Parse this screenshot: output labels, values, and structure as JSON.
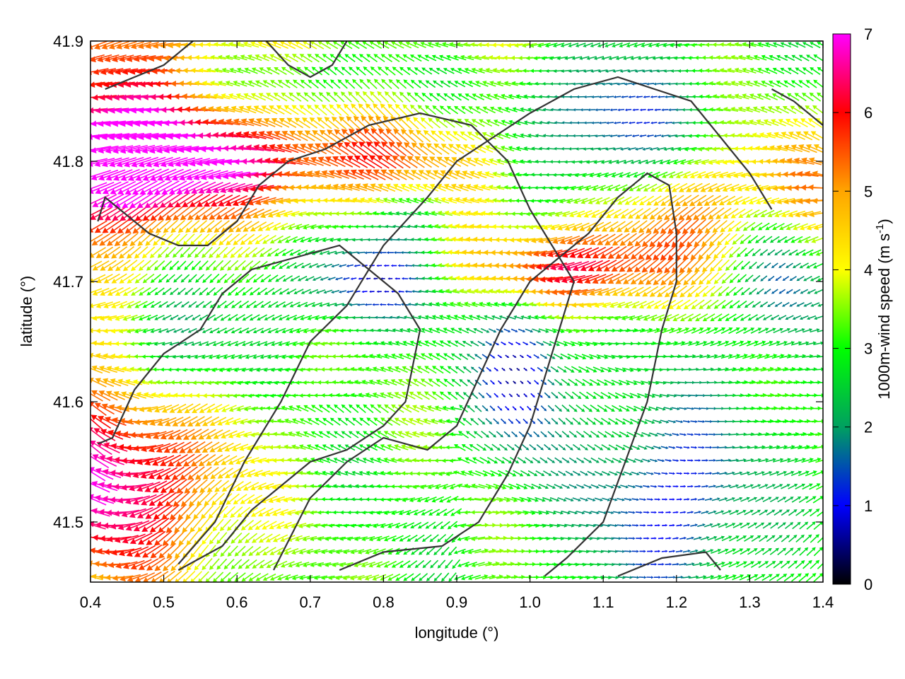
{
  "chart_data": {
    "type": "vector-field",
    "xlabel": "longitude (°)",
    "ylabel": "latitude (°)",
    "xlim": [
      0.4,
      1.4
    ],
    "ylim": [
      41.45,
      41.9
    ],
    "x_ticks": [
      "0.4",
      "0.5",
      "0.6",
      "0.7",
      "0.8",
      "0.9",
      "1.0",
      "1.1",
      "1.2",
      "1.3",
      "1.4"
    ],
    "y_ticks": [
      "41.5",
      "41.6",
      "41.7",
      "41.8",
      "41.9"
    ],
    "colorbar": {
      "label": "1000m-wind speed (m s",
      "label_sup": "-1",
      "label_close": ")",
      "min": 0,
      "max": 7,
      "ticks": [
        "0",
        "1",
        "2",
        "3",
        "4",
        "5",
        "6",
        "7"
      ],
      "colormap": [
        "#000000",
        "#0000ff",
        "#00a060",
        "#00ff00",
        "#ffff00",
        "#ffa500",
        "#ff0000",
        "#ff00ff"
      ]
    },
    "grid": false,
    "arrow_grid_step_deg": 0.01,
    "vector_description": "wind vectors sampled on a regular lon/lat grid; colour = speed",
    "contours": [
      [
        [
          0.41,
          41.565
        ],
        [
          0.43,
          41.57
        ],
        [
          0.46,
          41.61
        ],
        [
          0.5,
          41.64
        ],
        [
          0.55,
          41.66
        ],
        [
          0.58,
          41.69
        ],
        [
          0.62,
          41.71
        ],
        [
          0.68,
          41.72
        ],
        [
          0.74,
          41.73
        ],
        [
          0.78,
          41.71
        ],
        [
          0.82,
          41.69
        ],
        [
          0.85,
          41.66
        ],
        [
          0.83,
          41.6
        ],
        [
          0.8,
          41.58
        ],
        [
          0.75,
          41.56
        ],
        [
          0.7,
          41.55
        ],
        [
          0.66,
          41.53
        ],
        [
          0.62,
          41.51
        ],
        [
          0.58,
          41.48
        ],
        [
          0.52,
          41.46
        ]
      ],
      [
        [
          0.41,
          41.75
        ],
        [
          0.42,
          41.77
        ],
        [
          0.44,
          41.76
        ],
        [
          0.48,
          41.74
        ],
        [
          0.52,
          41.73
        ],
        [
          0.56,
          41.73
        ],
        [
          0.6,
          41.75
        ],
        [
          0.63,
          41.78
        ],
        [
          0.67,
          41.8
        ],
        [
          0.72,
          41.81
        ],
        [
          0.78,
          41.83
        ],
        [
          0.85,
          41.84
        ],
        [
          0.92,
          41.83
        ],
        [
          0.97,
          41.8
        ],
        [
          1.0,
          41.76
        ],
        [
          1.03,
          41.73
        ],
        [
          1.06,
          41.7
        ],
        [
          1.04,
          41.66
        ],
        [
          1.02,
          41.62
        ],
        [
          1.0,
          41.58
        ],
        [
          0.97,
          41.54
        ],
        [
          0.93,
          41.5
        ],
        [
          0.88,
          41.48
        ],
        [
          0.8,
          41.475
        ],
        [
          0.74,
          41.46
        ]
      ],
      [
        [
          0.65,
          41.46
        ],
        [
          0.7,
          41.52
        ],
        [
          0.75,
          41.55
        ],
        [
          0.8,
          41.57
        ],
        [
          0.86,
          41.56
        ],
        [
          0.9,
          41.58
        ],
        [
          0.93,
          41.62
        ],
        [
          0.96,
          41.66
        ],
        [
          1.0,
          41.7
        ],
        [
          1.04,
          41.72
        ],
        [
          1.08,
          41.74
        ],
        [
          1.12,
          41.77
        ],
        [
          1.16,
          41.79
        ],
        [
          1.19,
          41.78
        ],
        [
          1.2,
          41.74
        ],
        [
          1.2,
          41.7
        ],
        [
          1.18,
          41.66
        ],
        [
          1.16,
          41.6
        ],
        [
          1.13,
          41.55
        ],
        [
          1.1,
          41.5
        ],
        [
          1.05,
          41.47
        ],
        [
          1.02,
          41.455
        ]
      ],
      [
        [
          0.52,
          41.465
        ],
        [
          0.57,
          41.5
        ],
        [
          0.61,
          41.55
        ],
        [
          0.66,
          41.6
        ],
        [
          0.7,
          41.65
        ],
        [
          0.75,
          41.68
        ],
        [
          0.8,
          41.73
        ],
        [
          0.86,
          41.77
        ],
        [
          0.9,
          41.8
        ],
        [
          0.95,
          41.82
        ],
        [
          1.0,
          41.84
        ],
        [
          1.06,
          41.86
        ],
        [
          1.12,
          41.87
        ],
        [
          1.17,
          41.86
        ],
        [
          1.22,
          41.85
        ],
        [
          1.26,
          41.82
        ],
        [
          1.3,
          41.79
        ],
        [
          1.33,
          41.76
        ]
      ],
      [
        [
          1.12,
          41.455
        ],
        [
          1.18,
          41.47
        ],
        [
          1.24,
          41.475
        ],
        [
          1.26,
          41.46
        ]
      ],
      [
        [
          1.33,
          41.86
        ],
        [
          1.36,
          41.85
        ],
        [
          1.4,
          41.83
        ]
      ],
      [
        [
          0.42,
          41.86
        ],
        [
          0.46,
          41.87
        ],
        [
          0.5,
          41.88
        ],
        [
          0.54,
          41.9
        ]
      ],
      [
        [
          0.64,
          41.9
        ],
        [
          0.67,
          41.88
        ],
        [
          0.7,
          41.87
        ],
        [
          0.73,
          41.88
        ],
        [
          0.75,
          41.9
        ]
      ]
    ]
  }
}
